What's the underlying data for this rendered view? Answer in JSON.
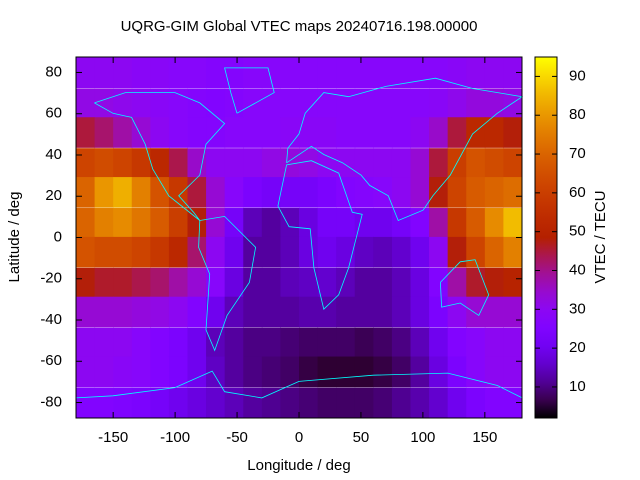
{
  "chart_data": {
    "type": "heatmap",
    "title": "UQRG-GIM Global VTEC maps 20240716.198.00000",
    "x_label": "Longitude / deg",
    "y_label": "Latitude / deg",
    "colorbar_label": "VTEC / TECU",
    "colormap": "gnuplot",
    "xlim": [
      -180,
      180
    ],
    "ylim": [
      -87.5,
      87.5
    ],
    "clim": [
      2,
      95
    ],
    "xticks": [
      -150,
      -100,
      -50,
      0,
      50,
      100,
      150
    ],
    "yticks": [
      -80,
      -60,
      -40,
      -20,
      0,
      20,
      40,
      60,
      80
    ],
    "cticks": [
      10,
      20,
      30,
      40,
      50,
      60,
      70,
      80,
      90
    ],
    "x": [
      -172.5,
      -157.5,
      -142.5,
      -127.5,
      -112.5,
      -97.5,
      -82.5,
      -67.5,
      -52.5,
      -37.5,
      -22.5,
      -7.5,
      7.5,
      22.5,
      37.5,
      52.5,
      67.5,
      82.5,
      97.5,
      112.5,
      127.5,
      142.5,
      157.5,
      172.5
    ],
    "y": [
      80,
      65,
      51,
      36,
      22,
      7,
      -7,
      -22,
      -36,
      -51,
      -65,
      -80
    ],
    "values": [
      [
        30,
        30,
        30,
        29,
        29,
        28,
        28,
        27,
        27,
        28,
        28,
        28,
        28,
        28,
        28,
        28,
        28,
        28,
        28,
        28,
        29,
        30,
        30,
        30
      ],
      [
        32,
        32,
        31,
        30,
        29,
        28,
        27,
        26,
        27,
        28,
        28,
        28,
        28,
        28,
        28,
        28,
        28,
        28,
        28,
        29,
        31,
        33,
        33,
        32
      ],
      [
        45,
        42,
        38,
        34,
        30,
        28,
        27,
        27,
        28,
        28,
        28,
        29,
        29,
        29,
        28,
        28,
        28,
        28,
        30,
        35,
        45,
        52,
        52,
        48
      ],
      [
        62,
        64,
        62,
        58,
        52,
        44,
        35,
        30,
        30,
        30,
        32,
        33,
        32,
        30,
        30,
        30,
        30,
        30,
        34,
        45,
        60,
        66,
        64,
        62
      ],
      [
        70,
        80,
        84,
        76,
        66,
        58,
        45,
        34,
        28,
        24,
        22,
        22,
        22,
        24,
        26,
        27,
        28,
        30,
        34,
        48,
        62,
        68,
        70,
        72
      ],
      [
        70,
        76,
        78,
        74,
        68,
        60,
        48,
        34,
        22,
        14,
        12,
        14,
        18,
        22,
        22,
        20,
        20,
        22,
        26,
        38,
        58,
        68,
        78,
        86
      ],
      [
        66,
        64,
        64,
        62,
        58,
        52,
        42,
        30,
        20,
        12,
        12,
        14,
        18,
        20,
        18,
        15,
        14,
        16,
        20,
        30,
        48,
        62,
        70,
        76
      ],
      [
        48,
        46,
        46,
        44,
        42,
        38,
        34,
        28,
        18,
        12,
        12,
        14,
        15,
        16,
        14,
        12,
        12,
        14,
        18,
        26,
        38,
        46,
        48,
        50
      ],
      [
        34,
        34,
        34,
        33,
        32,
        30,
        26,
        20,
        14,
        12,
        12,
        12,
        13,
        13,
        12,
        12,
        12,
        14,
        18,
        24,
        30,
        34,
        34,
        34
      ],
      [
        30,
        30,
        30,
        28,
        26,
        24,
        20,
        14,
        12,
        10,
        10,
        9,
        8,
        8,
        8,
        7,
        8,
        10,
        14,
        20,
        26,
        28,
        30,
        30
      ],
      [
        30,
        30,
        29,
        28,
        26,
        24,
        20,
        15,
        12,
        10,
        9,
        8,
        6,
        5,
        5,
        5,
        6,
        8,
        12,
        18,
        24,
        28,
        30,
        30
      ],
      [
        26,
        26,
        25,
        24,
        22,
        20,
        18,
        16,
        14,
        12,
        11,
        10,
        9,
        8,
        8,
        8,
        9,
        11,
        13,
        16,
        20,
        24,
        26,
        26
      ]
    ]
  }
}
